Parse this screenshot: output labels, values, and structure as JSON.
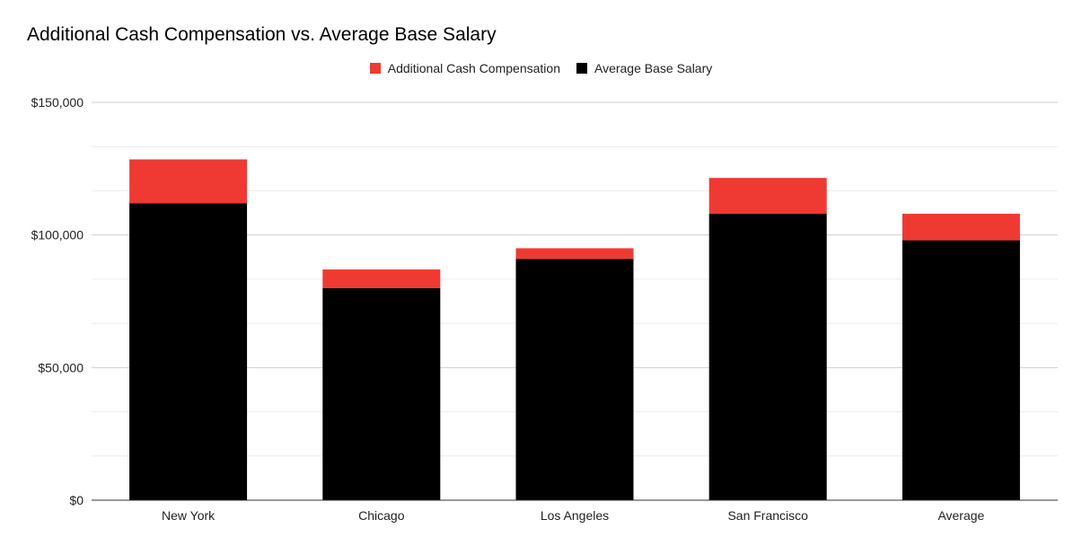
{
  "chart_data": {
    "type": "bar",
    "stacked": true,
    "title": "Additional Cash Compensation vs. Average Base Salary",
    "categories": [
      "New York",
      "Chicago",
      "Los Angeles",
      "San Francisco",
      "Average"
    ],
    "series": [
      {
        "name": "Average Base Salary",
        "color": "#000000",
        "values": [
          112000,
          80000,
          91000,
          108000,
          98000
        ]
      },
      {
        "name": "Additional Cash Compensation",
        "color": "#ef3a33",
        "values": [
          16500,
          7000,
          4000,
          13500,
          10000
        ]
      }
    ],
    "legend": [
      "Additional Cash Compensation",
      "Average Base Salary"
    ],
    "legend_position": "top",
    "ylim": [
      0,
      150000
    ],
    "yticks": [
      0,
      50000,
      100000,
      150000
    ],
    "ytick_labels": [
      "$0",
      "$50,000",
      "$100,000",
      "$150,000"
    ],
    "xlabel": "",
    "ylabel": "",
    "grid": true
  }
}
